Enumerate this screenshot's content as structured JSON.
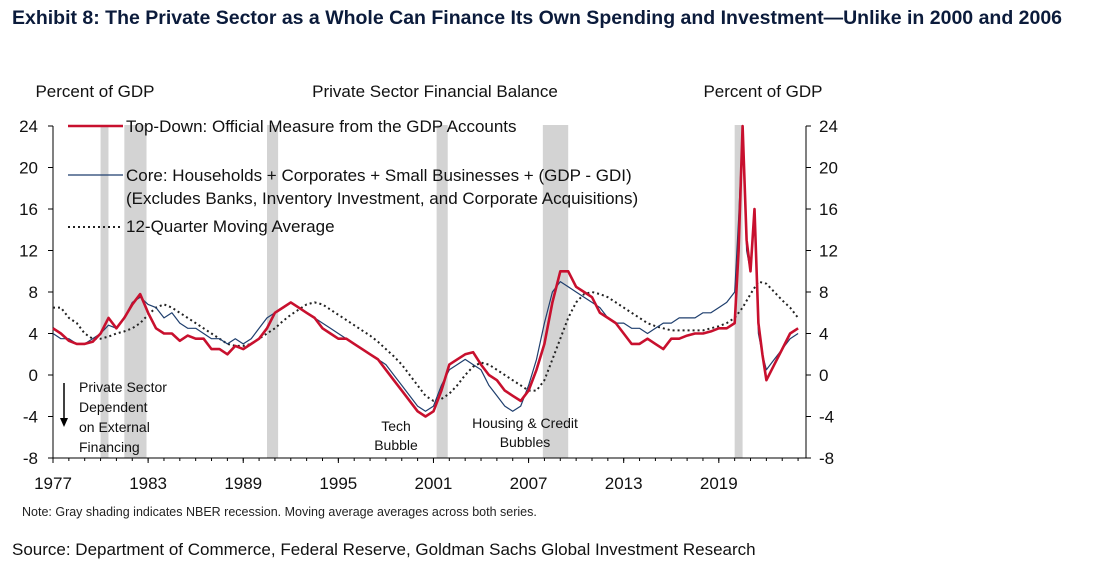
{
  "title": "Exhibit 8: The Private Sector as a Whole Can Finance Its Own Spending and Investment—Unlike in 2000 and 2006",
  "note": "Note: Gray shading indicates NBER  recession. Moving average averages across both series.",
  "source": "Source: Department of Commerce, Federal Reserve, Goldman Sachs Global Investment Research",
  "chart_data": {
    "type": "line",
    "title": "Private  Sector Financial Balance",
    "ylabel_left": "Percent of GDP",
    "ylabel_right": "Percent of GDP",
    "xlim": [
      1977,
      2024.5
    ],
    "ylim": [
      -8,
      24
    ],
    "xticks": [
      "1977",
      "1983",
      "1989",
      "1995",
      "2001",
      "2007",
      "2013",
      "2019"
    ],
    "yticks": [
      "24",
      "20",
      "16",
      "12",
      "8",
      "4",
      "0",
      "-4",
      "-8"
    ],
    "legend": {
      "placement": "top-left",
      "top_down": "Top-Down:  Official Measure from the GDP Accounts",
      "core_line1": "Core: Households + Corporates + Small Businesses + (GDP - GDI)",
      "core_line2": "(Excludes Banks, Inventory Investment, and Corporate Acquisitions)",
      "moving_average": "12-Quarter Moving Average"
    },
    "annotations": {
      "dependent_line1": "Private  Sector",
      "dependent_line2": "Dependent",
      "dependent_line3": "on External",
      "dependent_line4": "Financing",
      "tech_line1": "Tech",
      "tech_line2": "Bubble",
      "housing_line1": "Housing  & Credit",
      "housing_line2": "Bubbles"
    },
    "recessions": [
      [
        1980.0,
        1980.5
      ],
      [
        1981.5,
        1982.9
      ],
      [
        1990.5,
        1991.2
      ],
      [
        2001.2,
        2001.9
      ],
      [
        2007.9,
        2009.5
      ],
      [
        2020.0,
        2020.5
      ]
    ],
    "series": [
      {
        "name": "Top-Down:  Official Measure from the GDP Accounts",
        "color": "#c8102e",
        "x": [
          1977.0,
          1977.5,
          1978.0,
          1978.5,
          1979.0,
          1979.5,
          1980.0,
          1980.5,
          1981.0,
          1981.5,
          1982.0,
          1982.5,
          1983.0,
          1983.5,
          1984.0,
          1984.5,
          1985.0,
          1985.5,
          1986.0,
          1986.5,
          1987.0,
          1987.5,
          1988.0,
          1988.5,
          1989.0,
          1989.5,
          1990.0,
          1990.5,
          1991.0,
          1991.5,
          1992.0,
          1992.5,
          1993.0,
          1993.5,
          1994.0,
          1994.5,
          1995.0,
          1995.5,
          1996.0,
          1996.5,
          1997.0,
          1997.5,
          1998.0,
          1998.5,
          1999.0,
          1999.5,
          2000.0,
          2000.5,
          2001.0,
          2001.5,
          2002.0,
          2002.5,
          2003.0,
          2003.5,
          2004.0,
          2004.5,
          2005.0,
          2005.5,
          2006.0,
          2006.5,
          2007.0,
          2007.5,
          2008.0,
          2008.5,
          2009.0,
          2009.5,
          2010.0,
          2010.5,
          2011.0,
          2011.5,
          2012.0,
          2012.5,
          2013.0,
          2013.5,
          2014.0,
          2014.5,
          2015.0,
          2015.5,
          2016.0,
          2016.5,
          2017.0,
          2017.5,
          2018.0,
          2018.5,
          2019.0,
          2019.5,
          2020.0,
          2020.25,
          2020.5,
          2020.75,
          2021.0,
          2021.25,
          2021.5,
          2021.75,
          2022.0,
          2022.5,
          2023.0,
          2023.5,
          2024.0
        ],
        "values": [
          4.5,
          4.0,
          3.3,
          3.0,
          3.0,
          3.2,
          4.0,
          5.5,
          4.5,
          5.5,
          6.8,
          7.8,
          6.0,
          4.5,
          4.0,
          4.0,
          3.3,
          3.8,
          3.5,
          3.5,
          2.5,
          2.5,
          2.0,
          2.8,
          2.5,
          3.0,
          3.5,
          4.5,
          6.0,
          6.5,
          7.0,
          6.5,
          6.0,
          5.5,
          4.5,
          4.0,
          3.5,
          3.5,
          3.0,
          2.5,
          2.0,
          1.5,
          0.5,
          -0.5,
          -1.5,
          -2.5,
          -3.5,
          -4.0,
          -3.5,
          -1.5,
          1.0,
          1.5,
          2.0,
          2.2,
          1.0,
          0.0,
          -0.5,
          -1.5,
          -2.0,
          -2.5,
          -1.5,
          0.5,
          3.0,
          7.0,
          10.0,
          10.0,
          8.5,
          8.0,
          7.5,
          6.0,
          5.5,
          5.0,
          4.0,
          3.0,
          3.0,
          3.5,
          3.0,
          2.5,
          3.5,
          3.5,
          3.8,
          4.0,
          4.0,
          4.2,
          4.5,
          4.5,
          5.0,
          12.0,
          24.0,
          13.0,
          10.0,
          16.0,
          5.0,
          2.0,
          -0.5,
          1.0,
          2.5,
          4.0,
          4.5
        ]
      },
      {
        "name": "Core: Households + Corporates + Small Businesses + (GDP - GDI)",
        "color": "#1f3f6e",
        "x": [
          1977.0,
          1977.5,
          1978.0,
          1978.5,
          1979.0,
          1979.5,
          1980.0,
          1980.5,
          1981.0,
          1981.5,
          1982.0,
          1982.5,
          1983.0,
          1983.5,
          1984.0,
          1984.5,
          1985.0,
          1985.5,
          1986.0,
          1986.5,
          1987.0,
          1987.5,
          1988.0,
          1988.5,
          1989.0,
          1989.5,
          1990.0,
          1990.5,
          1991.0,
          1991.5,
          1992.0,
          1992.5,
          1993.0,
          1993.5,
          1994.0,
          1994.5,
          1995.0,
          1995.5,
          1996.0,
          1996.5,
          1997.0,
          1997.5,
          1998.0,
          1998.5,
          1999.0,
          1999.5,
          2000.0,
          2000.5,
          2001.0,
          2001.5,
          2002.0,
          2002.5,
          2003.0,
          2003.5,
          2004.0,
          2004.5,
          2005.0,
          2005.5,
          2006.0,
          2006.5,
          2007.0,
          2007.5,
          2008.0,
          2008.5,
          2009.0,
          2009.5,
          2010.0,
          2010.5,
          2011.0,
          2011.5,
          2012.0,
          2012.5,
          2013.0,
          2013.5,
          2014.0,
          2014.5,
          2015.0,
          2015.5,
          2016.0,
          2016.5,
          2017.0,
          2017.5,
          2018.0,
          2018.5,
          2019.0,
          2019.5,
          2020.0,
          2020.25,
          2020.5,
          2020.75,
          2021.0,
          2021.25,
          2021.5,
          2021.75,
          2022.0,
          2022.5,
          2023.0,
          2023.5,
          2024.0
        ],
        "values": [
          4.0,
          3.5,
          3.5,
          3.0,
          3.0,
          3.5,
          4.0,
          4.8,
          4.5,
          5.5,
          7.0,
          7.5,
          6.8,
          6.5,
          5.5,
          6.0,
          5.0,
          4.5,
          4.5,
          4.0,
          3.5,
          3.5,
          3.0,
          3.5,
          3.0,
          3.5,
          4.5,
          5.5,
          6.0,
          6.5,
          7.0,
          6.5,
          6.0,
          5.5,
          5.0,
          4.5,
          4.0,
          3.5,
          3.0,
          2.5,
          2.0,
          1.5,
          1.0,
          0.0,
          -1.0,
          -2.0,
          -3.0,
          -3.5,
          -3.0,
          -1.0,
          0.5,
          1.0,
          1.5,
          1.0,
          0.5,
          -1.0,
          -2.0,
          -3.0,
          -3.5,
          -3.0,
          -1.0,
          1.5,
          5.0,
          8.0,
          9.0,
          8.5,
          8.0,
          7.5,
          7.0,
          6.5,
          5.5,
          5.0,
          5.0,
          4.5,
          4.5,
          4.0,
          4.5,
          5.0,
          5.0,
          5.5,
          5.5,
          5.5,
          6.0,
          6.0,
          6.5,
          7.0,
          8.0,
          15.0,
          23.5,
          12.0,
          10.0,
          16.0,
          4.0,
          2.0,
          0.5,
          1.5,
          2.5,
          3.5,
          4.0
        ]
      },
      {
        "name": "12-Quarter Moving Average",
        "color": "#222222",
        "x": [
          1977.0,
          1977.5,
          1978.0,
          1978.5,
          1979.0,
          1979.5,
          1980.0,
          1980.5,
          1981.0,
          1981.5,
          1982.0,
          1982.5,
          1983.0,
          1983.5,
          1984.0,
          1984.5,
          1985.0,
          1985.5,
          1986.0,
          1986.5,
          1987.0,
          1987.5,
          1988.0,
          1988.5,
          1989.0,
          1989.5,
          1990.0,
          1990.5,
          1991.0,
          1991.5,
          1992.0,
          1992.5,
          1993.0,
          1993.5,
          1994.0,
          1994.5,
          1995.0,
          1995.5,
          1996.0,
          1996.5,
          1997.0,
          1997.5,
          1998.0,
          1998.5,
          1999.0,
          1999.5,
          2000.0,
          2000.5,
          2001.0,
          2001.5,
          2002.0,
          2002.5,
          2003.0,
          2003.5,
          2004.0,
          2004.5,
          2005.0,
          2005.5,
          2006.0,
          2006.5,
          2007.0,
          2007.5,
          2008.0,
          2008.5,
          2009.0,
          2009.5,
          2010.0,
          2010.5,
          2011.0,
          2011.5,
          2012.0,
          2012.5,
          2013.0,
          2013.5,
          2014.0,
          2014.5,
          2015.0,
          2015.5,
          2016.0,
          2016.5,
          2017.0,
          2017.5,
          2018.0,
          2018.5,
          2019.0,
          2019.5,
          2020.0,
          2020.5,
          2021.0,
          2021.5,
          2022.0,
          2022.5,
          2023.0,
          2023.5,
          2024.0
        ],
        "values": [
          6.5,
          6.5,
          5.5,
          5.0,
          4.0,
          3.5,
          3.5,
          3.7,
          4.0,
          4.2,
          4.5,
          5.0,
          5.8,
          6.5,
          6.8,
          6.5,
          6.0,
          5.5,
          5.0,
          4.5,
          4.0,
          3.5,
          3.0,
          2.8,
          2.8,
          3.0,
          3.5,
          4.0,
          4.5,
          5.2,
          5.8,
          6.3,
          6.8,
          7.0,
          6.8,
          6.3,
          5.8,
          5.3,
          4.8,
          4.3,
          3.8,
          3.2,
          2.5,
          1.8,
          1.0,
          0.0,
          -1.0,
          -2.0,
          -2.5,
          -2.3,
          -1.8,
          -1.0,
          0.0,
          0.8,
          1.2,
          1.0,
          0.5,
          0.0,
          -0.5,
          -1.0,
          -1.5,
          -1.5,
          -0.5,
          1.5,
          3.5,
          5.5,
          7.0,
          7.8,
          8.0,
          7.8,
          7.5,
          7.0,
          6.5,
          6.0,
          5.5,
          5.0,
          4.7,
          4.5,
          4.3,
          4.3,
          4.3,
          4.3,
          4.3,
          4.5,
          4.7,
          5.0,
          5.5,
          6.5,
          7.8,
          9.0,
          8.8,
          8.0,
          7.2,
          6.5,
          5.5
        ]
      }
    ]
  }
}
